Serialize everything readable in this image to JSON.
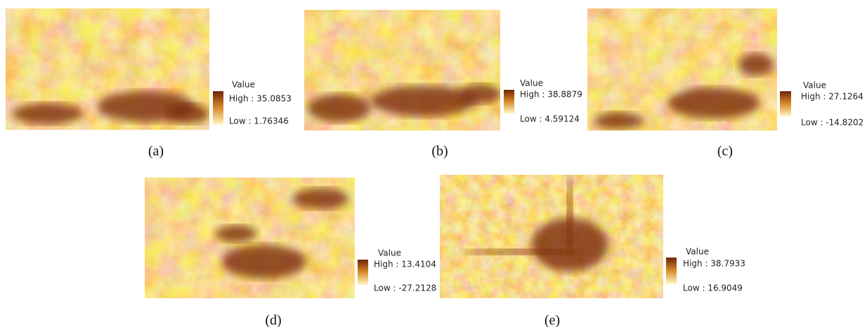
{
  "panels": [
    {
      "legend_title": "Value",
      "high": "High : 35.0853",
      "low": "Low : 1.76346",
      "caption": "(a)"
    },
    {
      "legend_title": "Value",
      "high": "High : 38.8879",
      "low": "Low : 4.59124",
      "caption": "(b)"
    },
    {
      "legend_title": "Value",
      "high": "High : 27.1264",
      "low": "Low : -14.8202",
      "caption": "(c)"
    },
    {
      "legend_title": "Value",
      "high": "High : 13.4104",
      "low": "Low : -27.2128",
      "caption": "(d)"
    },
    {
      "legend_title": "Value",
      "high": "High : 38.7933",
      "low": "Low : 16.9049",
      "caption": "(e)"
    }
  ]
}
